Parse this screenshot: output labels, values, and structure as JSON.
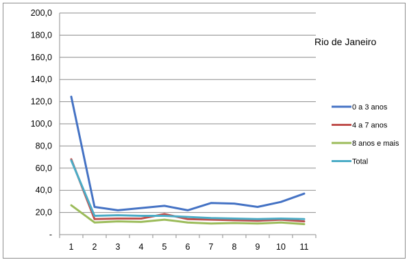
{
  "chart_data": {
    "type": "line",
    "title": "",
    "xlabel": "",
    "ylabel": "",
    "annotation": "Rio de Janeiro",
    "x": [
      1,
      2,
      3,
      4,
      5,
      6,
      7,
      8,
      9,
      10,
      11
    ],
    "ylim": [
      0,
      200
    ],
    "ytick_labels": [
      "-",
      "20,0",
      "40,0",
      "60,0",
      "80,0",
      "100,0",
      "120,0",
      "140,0",
      "160,0",
      "180,0",
      "200,0"
    ],
    "grid": "horizontal",
    "legend_position": "right",
    "series": [
      {
        "name": "0 a 3 anos",
        "color": "#4472c4",
        "values": [
          124.5,
          25.0,
          22.0,
          24.0,
          26.0,
          22.0,
          28.5,
          28.0,
          25.0,
          29.5,
          37.0
        ]
      },
      {
        "name": "4 a 7 anos",
        "color": "#c0504d",
        "values": [
          68.0,
          14.0,
          14.5,
          14.5,
          18.5,
          14.0,
          13.5,
          13.0,
          12.5,
          13.5,
          12.0
        ]
      },
      {
        "name": "8 anos e mais",
        "color": "#9bbb59",
        "values": [
          26.5,
          11.0,
          12.0,
          11.5,
          13.5,
          11.0,
          10.0,
          10.5,
          10.0,
          11.0,
          9.5
        ]
      },
      {
        "name": "Total",
        "color": "#4bacc6",
        "values": [
          67.0,
          17.0,
          17.5,
          17.0,
          17.0,
          16.0,
          15.0,
          14.5,
          14.0,
          14.5,
          14.0
        ]
      }
    ]
  }
}
